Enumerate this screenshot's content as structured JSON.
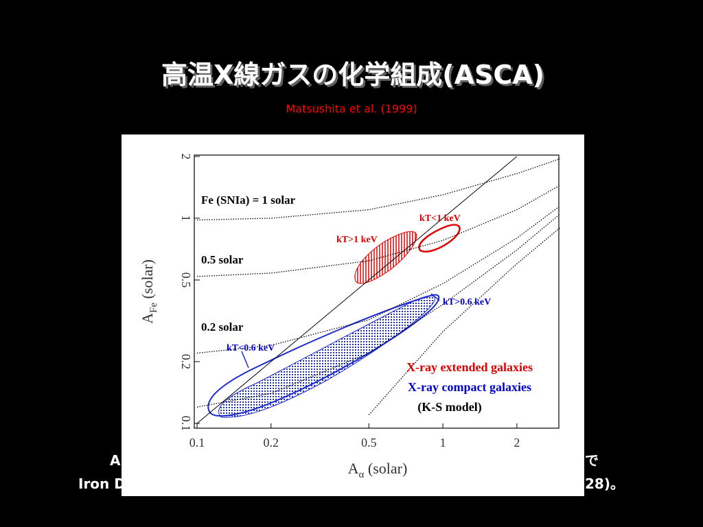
{
  "slide": {
    "title": "高温X線ガスの化学組成(ASCA)",
    "citation": "Matsushita et al. (1999)",
    "hidden_fragments": [
      "A",
      "で",
      "Iron D",
      "28)。"
    ]
  },
  "chart_data": {
    "type": "line",
    "xlabel": {
      "main": "A",
      "sub": "α",
      "rest": " (solar)"
    },
    "ylabel": {
      "main": "A",
      "sub": "Fe",
      "rest": " (solar)"
    },
    "log_x": true,
    "log_y": true,
    "xlim": [
      0.1,
      3
    ],
    "ylim": [
      0.1,
      2
    ],
    "xticks": [
      0.1,
      0.2,
      0.5,
      1,
      2
    ],
    "yticks": [
      0.1,
      0.2,
      0.5,
      1,
      2
    ],
    "x": [
      0.1,
      0.2,
      0.5,
      1,
      2,
      3
    ],
    "series": [
      {
        "color": "#000000",
        "style": "solid",
        "values": [
          0.1,
          0.2,
          0.5,
          1,
          2,
          null
        ]
      },
      {
        "name": "Fe (SNIa) = 1 solar",
        "color": "#000000",
        "style": "dotted",
        "values": [
          0.98,
          1.0,
          1.1,
          1.3,
          1.65,
          1.95
        ]
      },
      {
        "name": "0.5 solar",
        "color": "#000000",
        "style": "dotted",
        "values": [
          0.52,
          0.54,
          0.62,
          0.78,
          1.1,
          1.45
        ]
      },
      {
        "name": "0.2 solar",
        "color": "#000000",
        "style": "dotted",
        "values": [
          0.22,
          0.24,
          0.32,
          0.48,
          0.8,
          1.15
        ]
      },
      {
        "color": "#000000",
        "style": "dotted",
        "values": [
          0.12,
          0.14,
          0.22,
          0.38,
          0.7,
          1.05
        ]
      },
      {
        "color": "#000000",
        "style": "dotted",
        "values": [
          null,
          null,
          0.11,
          0.28,
          0.6,
          0.9
        ]
      }
    ],
    "annotations": [
      {
        "text": "kT<1 keV",
        "color": "#e00000"
      },
      {
        "text": "kT>1 keV",
        "color": "#e00000"
      },
      {
        "text": "kT>0.6 keV",
        "color": "#0000d0"
      },
      {
        "text": "kT<0.6 keV",
        "color": "#0000d0"
      }
    ],
    "legend": [
      {
        "text": "X-ray extended galaxies",
        "color": "#e00000"
      },
      {
        "text": "X-ray compact galaxies",
        "color": "#0000d0"
      },
      {
        "text": "(K-S model)",
        "color": "#000000"
      }
    ]
  }
}
